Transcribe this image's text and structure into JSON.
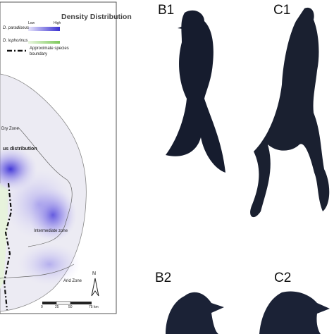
{
  "map": {
    "legend_title": "Density Distribution",
    "low": "Low",
    "high": "High",
    "species": [
      "D. paradiseus",
      "D. lophorinus"
    ],
    "boundary_label": "Approximate species boundary",
    "distribution_label": "us distribution",
    "zones": [
      "Dry Zone",
      "Intermediate zone",
      "Arid Zone"
    ],
    "north": "N",
    "scale": [
      "0",
      "25",
      "50",
      "75 km"
    ]
  },
  "panels": [
    "B1",
    "C1",
    "B2",
    "C2"
  ]
}
